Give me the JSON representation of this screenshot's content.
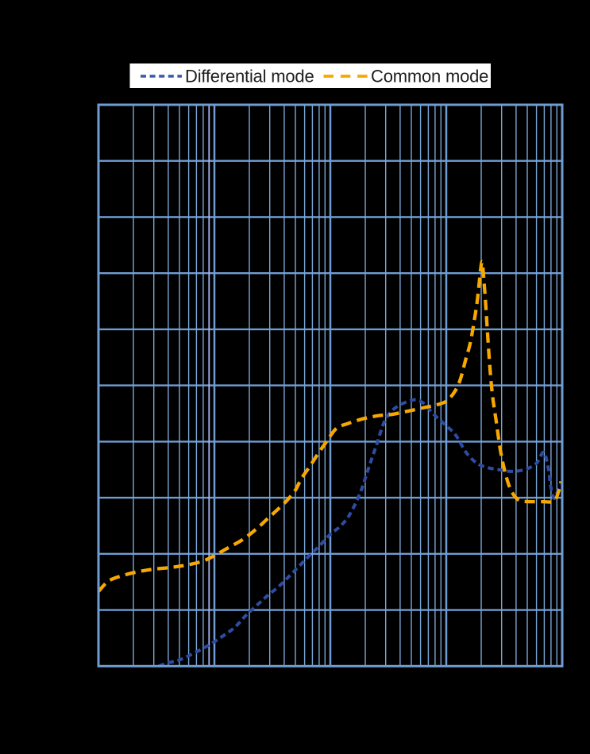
{
  "colors": {
    "background": "#000000",
    "grid_major": "#6f9dd3",
    "grid_minor": "#7aa5d6",
    "frame": "#6f9dd3",
    "differential": "#2e4ca3",
    "common": "#f7a800",
    "legend_background": "#ffffff",
    "legend_text": "#1e1e1e"
  },
  "legend": {
    "items": [
      {
        "label": "Differential mode",
        "color": "#3a56b0",
        "dash_style": "short-dash"
      },
      {
        "label": "Common mode",
        "color": "#f7a800",
        "dash_style": "long-dash"
      }
    ]
  },
  "chart_data": {
    "type": "line",
    "title": "",
    "xlabel": "",
    "ylabel": "",
    "x_axis": {
      "scale": "log",
      "decades": 4,
      "tick_labels_visible": false
    },
    "y_axis": {
      "scale": "linear",
      "divisions": 10,
      "tick_labels_visible": false
    },
    "grid": true,
    "legend_position": "top",
    "point_encoding": "each point is [x in log-decades from left edge (0-4), y in grid divisions from bottom axis (0-10)]; axis tick labels are not visible in the image (rendered black on black)",
    "extra_gridline": {
      "x_decades": 0.954,
      "color": "#a9b4f0"
    },
    "series": [
      {
        "name": "Differential mode",
        "color": "#2e4ca3",
        "dash": "7.5 4.8",
        "stroke_width": 4,
        "data_name": "differential-mode-curve",
        "points": [
          [
            0.52,
            0.0
          ],
          [
            0.6,
            0.06
          ],
          [
            0.7,
            0.11
          ],
          [
            0.86,
            0.27
          ],
          [
            0.98,
            0.41
          ],
          [
            1.09,
            0.56
          ],
          [
            1.18,
            0.7
          ],
          [
            1.26,
            0.88
          ],
          [
            1.3,
            0.96
          ],
          [
            1.38,
            1.11
          ],
          [
            1.46,
            1.26
          ],
          [
            1.55,
            1.41
          ],
          [
            1.64,
            1.59
          ],
          [
            1.73,
            1.78
          ],
          [
            1.82,
            1.97
          ],
          [
            1.91,
            2.15
          ],
          [
            2.0,
            2.35
          ],
          [
            2.09,
            2.5
          ],
          [
            2.17,
            2.71
          ],
          [
            2.26,
            3.1
          ],
          [
            2.33,
            3.53
          ],
          [
            2.4,
            3.95
          ],
          [
            2.47,
            4.37
          ],
          [
            2.56,
            4.6
          ],
          [
            2.71,
            4.74
          ],
          [
            2.8,
            4.69
          ],
          [
            2.89,
            4.49
          ],
          [
            2.99,
            4.3
          ],
          [
            3.08,
            4.12
          ],
          [
            3.17,
            3.81
          ],
          [
            3.26,
            3.62
          ],
          [
            3.35,
            3.54
          ],
          [
            3.45,
            3.5
          ],
          [
            3.57,
            3.47
          ],
          [
            3.69,
            3.51
          ],
          [
            3.78,
            3.62
          ],
          [
            3.84,
            3.81
          ],
          [
            3.88,
            3.53
          ],
          [
            3.9,
            3.21
          ],
          [
            3.93,
            2.99
          ],
          [
            3.96,
            3.11
          ],
          [
            3.99,
            3.23
          ]
        ]
      },
      {
        "name": "Common mode",
        "color": "#f7a800",
        "dash": "13 7.5",
        "stroke_width": 4.3,
        "data_name": "common-mode-curve",
        "points": [
          [
            0.0,
            1.33
          ],
          [
            0.09,
            1.52
          ],
          [
            0.22,
            1.62
          ],
          [
            0.36,
            1.69
          ],
          [
            0.49,
            1.73
          ],
          [
            0.63,
            1.76
          ],
          [
            0.76,
            1.8
          ],
          [
            0.9,
            1.87
          ],
          [
            1.0,
            1.97
          ],
          [
            1.12,
            2.11
          ],
          [
            1.24,
            2.25
          ],
          [
            1.36,
            2.44
          ],
          [
            1.45,
            2.61
          ],
          [
            1.54,
            2.78
          ],
          [
            1.63,
            2.96
          ],
          [
            1.7,
            3.14
          ],
          [
            1.75,
            3.34
          ],
          [
            1.82,
            3.55
          ],
          [
            1.89,
            3.77
          ],
          [
            1.96,
            3.98
          ],
          [
            2.05,
            4.23
          ],
          [
            2.15,
            4.32
          ],
          [
            2.27,
            4.4
          ],
          [
            2.41,
            4.46
          ],
          [
            2.52,
            4.48
          ],
          [
            2.64,
            4.53
          ],
          [
            2.82,
            4.61
          ],
          [
            2.91,
            4.65
          ],
          [
            3.0,
            4.72
          ],
          [
            3.07,
            4.88
          ],
          [
            3.12,
            5.1
          ],
          [
            3.17,
            5.48
          ],
          [
            3.21,
            5.79
          ],
          [
            3.26,
            6.4
          ],
          [
            3.28,
            6.75
          ],
          [
            3.295,
            7.05
          ],
          [
            3.31,
            7.2
          ],
          [
            3.325,
            6.85
          ],
          [
            3.34,
            6.45
          ],
          [
            3.36,
            5.79
          ],
          [
            3.38,
            5.22
          ],
          [
            3.4,
            4.8
          ],
          [
            3.43,
            4.37
          ],
          [
            3.47,
            3.81
          ],
          [
            3.51,
            3.43
          ],
          [
            3.55,
            3.17
          ],
          [
            3.6,
            3.0
          ],
          [
            3.65,
            2.94
          ],
          [
            3.74,
            2.93
          ],
          [
            3.84,
            2.93
          ],
          [
            3.93,
            2.94
          ],
          [
            3.97,
            3.12
          ],
          [
            3.99,
            3.29
          ]
        ]
      }
    ]
  }
}
